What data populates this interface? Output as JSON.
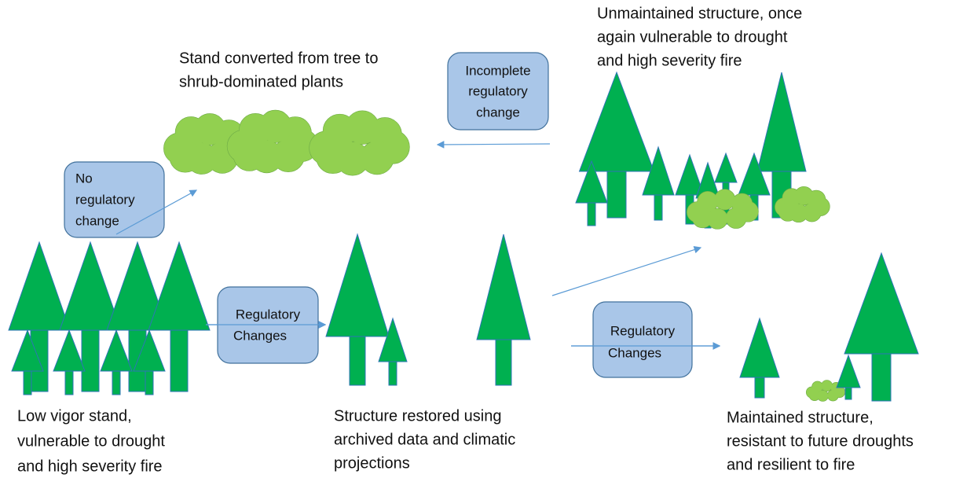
{
  "labels": {
    "shrub_stand": [
      "Stand converted from tree to",
      "shrub-dominated plants"
    ],
    "unmaintained": [
      "Unmaintained structure, once",
      "again vulnerable to drought",
      "and high severity fire"
    ],
    "low_vigor": [
      "Low vigor stand,",
      "vulnerable to drought",
      "and high severity fire"
    ],
    "restored": [
      "Structure restored using",
      "archived data and climatic",
      "projections"
    ],
    "maintained": [
      "Maintained structure,",
      "resistant to future droughts",
      "and resilient to fire"
    ]
  },
  "boxes": {
    "incomplete": [
      "Incomplete",
      "regulatory",
      "change"
    ],
    "none": [
      "No",
      "regulatory",
      "change"
    ],
    "changes_1": [
      "Regulatory",
      "Changes"
    ],
    "changes_2": [
      "Regulatory",
      "Changes"
    ]
  }
}
